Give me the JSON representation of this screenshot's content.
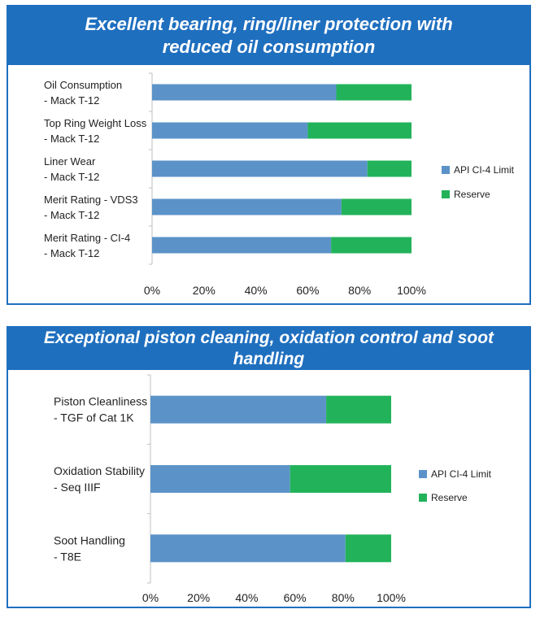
{
  "colors": {
    "header_bg": "#1f6fbf",
    "api_limit": "#5b93c8",
    "reserve": "#22b35a"
  },
  "panels": [
    {
      "title_line1": "Excellent bearing, ring/liner protection with",
      "title_line2": "reduced oil consumption"
    },
    {
      "title_line1": "Exceptional piston cleaning, oxidation control and soot handling",
      "title_line2": ""
    }
  ],
  "chart_data": [
    {
      "type": "bar",
      "orientation": "horizontal",
      "stacked": "percent",
      "categories": [
        [
          "Oil Consumption",
          "- Mack T-12"
        ],
        [
          "Top Ring Weight Loss",
          "- Mack T-12"
        ],
        [
          "Liner Wear",
          "- Mack T-12"
        ],
        [
          "Merit Rating - VDS3",
          "- Mack T-12"
        ],
        [
          "Merit Rating - CI-4",
          "- Mack T-12"
        ]
      ],
      "series": [
        {
          "name": "API CI-4 Limit",
          "values": [
            71,
            60,
            83,
            73,
            69
          ]
        },
        {
          "name": "Reserve",
          "values": [
            29,
            40,
            17,
            27,
            31
          ]
        }
      ],
      "xlim": [
        0,
        100
      ],
      "xticks": [
        "0%",
        "20%",
        "40%",
        "60%",
        "80%",
        "100%"
      ],
      "legend": "right",
      "grid": false
    },
    {
      "type": "bar",
      "orientation": "horizontal",
      "stacked": "percent",
      "categories": [
        [
          "Piston Cleanliness",
          "- TGF of Cat 1K"
        ],
        [
          "Oxidation Stability",
          "- Seq IIIF"
        ],
        [
          "Soot Handling",
          "- T8E"
        ]
      ],
      "series": [
        {
          "name": "API CI-4 Limit",
          "values": [
            73,
            58,
            81
          ]
        },
        {
          "name": "Reserve",
          "values": [
            27,
            42,
            19
          ]
        }
      ],
      "xlim": [
        0,
        100
      ],
      "xticks": [
        "0%",
        "20%",
        "40%",
        "60%",
        "80%",
        "100%"
      ],
      "legend": "right",
      "grid": false
    }
  ]
}
